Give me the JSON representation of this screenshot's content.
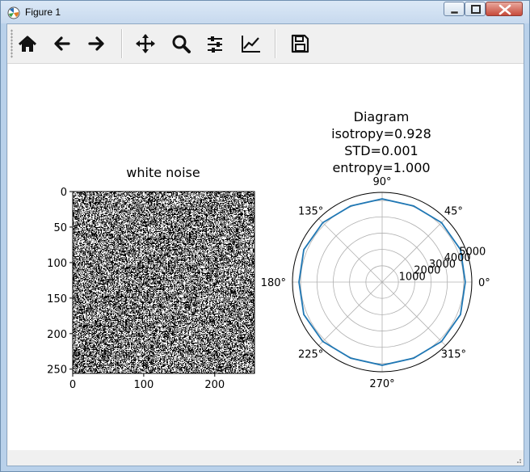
{
  "window": {
    "title": "Figure 1",
    "buttons": {
      "minimize": "minimize",
      "maximize": "maximize",
      "close": "close"
    }
  },
  "toolbar": {
    "tools": [
      {
        "icon": "home-icon",
        "tooltip": "Reset original view"
      },
      {
        "icon": "back-arrow-icon",
        "tooltip": "Back"
      },
      {
        "icon": "forward-arrow-icon",
        "tooltip": "Forward"
      },
      {
        "icon": "pan-move-icon",
        "tooltip": "Pan"
      },
      {
        "icon": "zoom-magnifier-icon",
        "tooltip": "Zoom"
      },
      {
        "icon": "subplots-sliders-icon",
        "tooltip": "Configure subplots"
      },
      {
        "icon": "edit-axis-chart-icon",
        "tooltip": "Edit axis"
      },
      {
        "icon": "save-disk-icon",
        "tooltip": "Save"
      }
    ]
  },
  "figure": {
    "left_title": "white noise",
    "right_title_lines": [
      "Diagram",
      "isotropy=0.928",
      "STD=0.001",
      "entropy=1.000"
    ]
  },
  "chart_data": [
    {
      "type": "heatmap",
      "title": "white noise",
      "x_ticks": [
        "0",
        "100",
        "200"
      ],
      "y_ticks": [
        "0",
        "50",
        "100",
        "150",
        "200",
        "250"
      ],
      "xlim": [
        0,
        256
      ],
      "ylim": [
        256,
        0
      ],
      "image_size": [
        256,
        256
      ],
      "colormap": "gray",
      "values": "random binary noise (0/1) per pixel"
    },
    {
      "type": "line",
      "projection": "polar",
      "title": "Diagram\nisotropy=0.928\nSTD=0.001\nentropy=1.000",
      "angle_ticks": [
        "0°",
        "45°",
        "90°",
        "135°",
        "180°",
        "225°",
        "270°",
        "315°"
      ],
      "radial_ticks": [
        "1000",
        "2000",
        "3000",
        "4000",
        "5000"
      ],
      "rlim": [
        0,
        5500
      ],
      "series": [
        {
          "color": "#1f77b4",
          "theta_deg": [
            0,
            22.5,
            45,
            67.5,
            90,
            112.5,
            135,
            157.5,
            180,
            202.5,
            225,
            247.5,
            270,
            292.5,
            315,
            337.5,
            360
          ],
          "r": [
            5100,
            5200,
            5150,
            5050,
            5100,
            5050,
            5150,
            5200,
            5100,
            5200,
            5150,
            5050,
            5100,
            5050,
            5150,
            5200,
            5100
          ]
        }
      ],
      "grid": true
    }
  ]
}
